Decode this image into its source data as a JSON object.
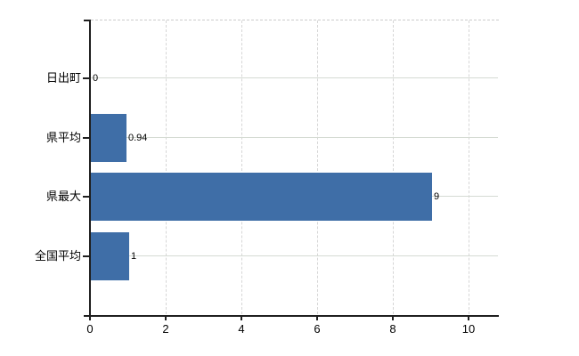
{
  "chart_data": {
    "type": "bar",
    "orientation": "horizontal",
    "title": "",
    "xlabel": "",
    "ylabel": "",
    "categories": [
      "日出町",
      "県平均",
      "県最大",
      "全国平均"
    ],
    "values": [
      0,
      0.94,
      9,
      1
    ],
    "value_labels": [
      "0",
      "0.94",
      "9",
      "1"
    ],
    "x_ticks": [
      0,
      2,
      4,
      6,
      8,
      10
    ],
    "x_tick_labels": [
      "0",
      "2",
      "4",
      "6",
      "8",
      "10"
    ],
    "xlim": [
      0,
      10.8
    ],
    "grid": true,
    "legend": "none",
    "colors": {
      "bar": "#3f6ea7",
      "axis": "#1f1f1f",
      "vertical_grid": "#d6d6d6",
      "horizontal_grid": "#d5dbd3",
      "background": "#ffffff",
      "text": "#000000"
    }
  }
}
